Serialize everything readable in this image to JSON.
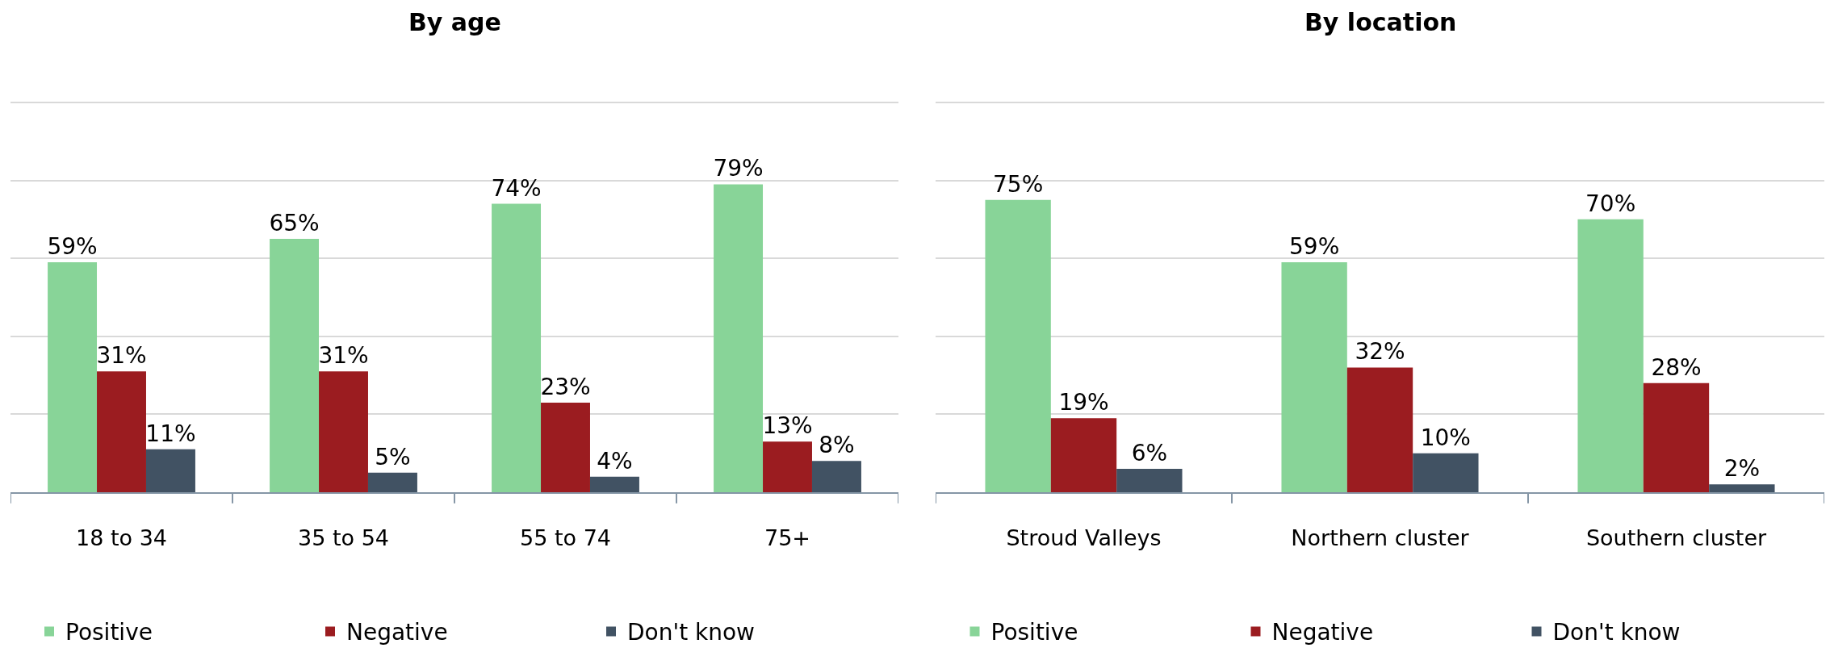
{
  "chart_data": [
    {
      "type": "bar",
      "title": "By age",
      "categories": [
        "18 to 34",
        "35 to 54",
        "55 to 74",
        "75+"
      ],
      "series": [
        {
          "name": "Positive",
          "color": "#88d498",
          "values": [
            59,
            65,
            74,
            79
          ],
          "value_labels": [
            "59%",
            "65%",
            "74%",
            "79%"
          ]
        },
        {
          "name": "Negative",
          "color": "#9b1c20",
          "values": [
            31,
            31,
            23,
            13
          ],
          "value_labels": [
            "31%",
            "31%",
            "23%",
            "13%"
          ]
        },
        {
          "name": "Don't know",
          "color": "#415263",
          "values": [
            11,
            5,
            4,
            8
          ],
          "value_labels": [
            "11%",
            "5%",
            "4%",
            "8%"
          ]
        }
      ],
      "yticks": [
        {
          "value": 0,
          "label": null
        },
        {
          "value": 20,
          "label": null
        },
        {
          "value": 40,
          "label": null
        },
        {
          "value": 60,
          "label": null
        },
        {
          "value": 80,
          "label": null
        },
        {
          "value": 100,
          "label": null
        }
      ],
      "tick_labels": "x",
      "grid": "y",
      "legend": "bottom"
    },
    {
      "type": "bar",
      "title": "By location",
      "categories": [
        "Stroud Valleys",
        "Northern cluster",
        "Southern cluster"
      ],
      "series": [
        {
          "name": "Positive",
          "color": "#88d498",
          "values": [
            75,
            59,
            70
          ],
          "value_labels": [
            "75%",
            "59%",
            "70%"
          ]
        },
        {
          "name": "Negative",
          "color": "#9b1c20",
          "values": [
            19,
            32,
            28
          ],
          "value_labels": [
            "19%",
            "32%",
            "28%"
          ]
        },
        {
          "name": "Don't know",
          "color": "#415263",
          "values": [
            6,
            10,
            2
          ],
          "value_labels": [
            "6%",
            "10%",
            "2%"
          ]
        }
      ],
      "yticks": [
        {
          "value": 0,
          "label": null
        },
        {
          "value": 20,
          "label": null
        },
        {
          "value": 40,
          "label": null
        },
        {
          "value": 60,
          "label": null
        },
        {
          "value": 80,
          "label": null
        },
        {
          "value": 100,
          "label": null
        }
      ],
      "tick_labels": "x",
      "grid": "y",
      "legend": "bottom"
    }
  ]
}
